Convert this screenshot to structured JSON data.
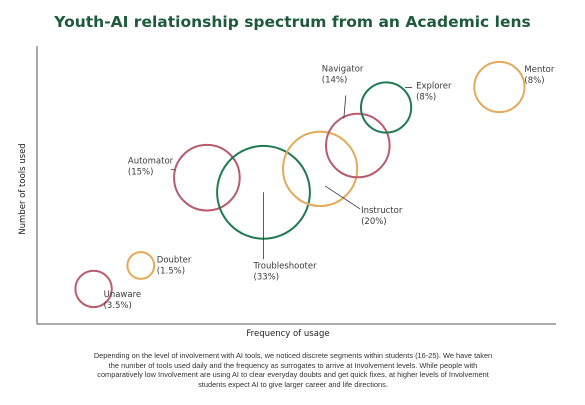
{
  "page": {
    "title": "Youth-AI relationship spectrum from an Academic lens",
    "caption": "Depending on the level of involvement with AI tools, we noticed discrete segments within students (16-25). We have taken the number of tools used daily and the frequency as surrogates to arrive at Involvement levels. While people with comparatively low Involvement are using AI to clear everyday doubts and get quick fixes, at higher levels of Involvement students expect AI to give larger career and life directions."
  },
  "colors": {
    "red": "#b85b6e",
    "green": "#207a52",
    "orange": "#e3aa59",
    "title": "#1f5a3d",
    "axis": "#555555"
  },
  "chart_data": {
    "type": "scatter",
    "title": "Youth-AI relationship spectrum from an Academic lens",
    "xlabel": "Frequency of usage",
    "ylabel": "Number of tools used",
    "grid": false,
    "legend": "none",
    "bubble_size_measure": "share of students (%)",
    "segments": [
      {
        "name": "Unaware",
        "share_label": "(3.5%)",
        "share": 3.5,
        "x": 1.1,
        "y": 1.2,
        "color": "red"
      },
      {
        "name": "Doubter",
        "share_label": "(1.5%)",
        "share": 1.5,
        "x": 1.6,
        "y": 2.0,
        "color": "orange"
      },
      {
        "name": "Automator",
        "share_label": "(15%)",
        "share": 15,
        "x": 2.3,
        "y": 5.0,
        "color": "red"
      },
      {
        "name": "Troubleshooter",
        "share_label": "(33%)",
        "share": 33,
        "x": 2.9,
        "y": 4.5,
        "color": "green"
      },
      {
        "name": "Instructor",
        "share_label": "(20%)",
        "share": 20,
        "x": 3.5,
        "y": 5.3,
        "color": "orange"
      },
      {
        "name": "Navigator",
        "share_label": "(14%)",
        "share": 14,
        "x": 3.9,
        "y": 6.1,
        "color": "red"
      },
      {
        "name": "Explorer",
        "share_label": "(8%)",
        "share": 8,
        "x": 4.2,
        "y": 7.4,
        "color": "green"
      },
      {
        "name": "Mentor",
        "share_label": "(8%)",
        "share": 8,
        "x": 5.4,
        "y": 8.1,
        "color": "orange"
      }
    ]
  }
}
